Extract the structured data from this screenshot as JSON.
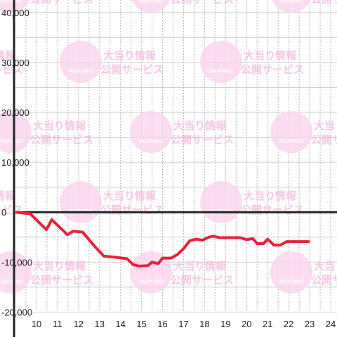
{
  "chart_data": {
    "type": "line",
    "x": [
      9.0,
      9.7,
      10.47,
      10.73,
      11.47,
      11.75,
      12.2,
      12.7,
      13.2,
      13.7,
      14.3,
      14.6,
      14.9,
      15.3,
      15.5,
      15.8,
      16.0,
      16.4,
      16.7,
      17.0,
      17.3,
      17.6,
      17.9,
      18.2,
      18.4,
      18.7,
      19.5,
      19.7,
      20.0,
      20.3,
      20.5,
      20.8,
      21.0,
      21.3,
      21.6,
      21.9,
      23.0
    ],
    "series": [
      {
        "color": "#e8213d",
        "values": [
          0,
          -300,
          -3500,
          -1500,
          -4500,
          -3800,
          -4000,
          -6500,
          -8800,
          -9000,
          -9300,
          -10500,
          -10800,
          -10700,
          -10000,
          -10300,
          -9200,
          -9200,
          -8500,
          -7300,
          -5700,
          -5400,
          -5600,
          -5000,
          -4800,
          -5100,
          -5100,
          -5100,
          -5500,
          -5300,
          -6300,
          -6300,
          -5400,
          -6600,
          -6600,
          -5900,
          -5900
        ]
      }
    ],
    "xlim": [
      9.0,
      24.3
    ],
    "xticks": [
      10,
      11,
      12,
      13,
      14,
      15,
      16,
      17,
      18,
      19,
      20,
      21,
      22,
      23,
      24
    ],
    "x_minor_ticks": [
      9.5,
      10.5,
      11.5,
      12.5,
      13.5,
      14.5,
      15.5,
      16.5,
      17.5,
      18.5,
      19.5,
      20.5,
      21.5,
      22.5,
      23.5
    ],
    "ylim": [
      -25000,
      42500
    ],
    "yticks": [
      {
        "value": -20000,
        "label": "-20,000"
      },
      {
        "value": -10000,
        "label": "-10,000"
      },
      0,
      {
        "value": 10000,
        "label": "10,000"
      },
      {
        "value": 20000,
        "label": "20,000"
      },
      {
        "value": 30000,
        "label": "30,000"
      },
      {
        "value": 40000,
        "label": "40,000"
      }
    ],
    "y_minor_ticks": [
      -15000,
      -5000,
      5000,
      15000,
      25000,
      35000
    ],
    "grid": true,
    "watermark": {
      "brand": "PAPIMO",
      "line1": "大当り情報",
      "line2": "公開サービス"
    }
  }
}
